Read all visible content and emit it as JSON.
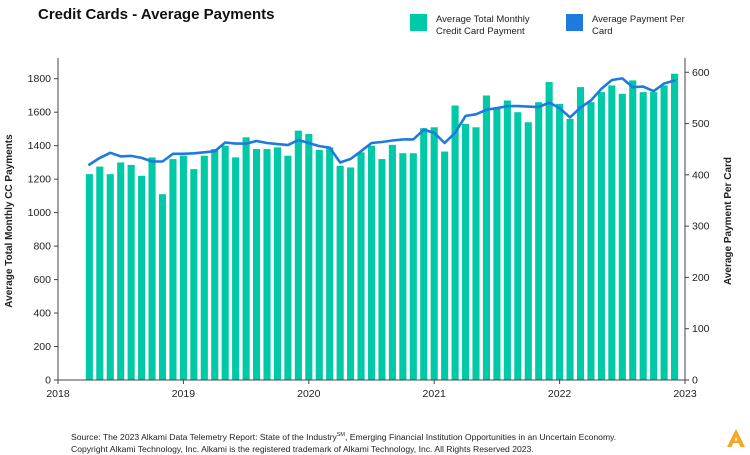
{
  "title": "Credit Cards - Average Payments",
  "colors": {
    "bar": "#00c9a7",
    "line": "#1f7ae0",
    "axis": "#444444"
  },
  "legend": [
    {
      "label": "Average Total Monthly Credit Card Payment",
      "color": "#00c9a7",
      "marker": "square"
    },
    {
      "label": "Average Payment Per Card",
      "color": "#1f7ae0",
      "marker": "square"
    }
  ],
  "footnote": {
    "line1_before": "Source: The 2023 Alkami Data Telemetry Report: State of the Industry",
    "line1_sup": "SM",
    "line1_after": ", Emerging Financial Institution Opportunities in an Uncertain Economy.",
    "line2": "Copyright Alkami Technology, Inc. Alkami is the registered trademark of Alkami Technology, Inc. All Rights Reserved 2023."
  },
  "logo_icon": "alkami-logo-icon",
  "chart_data": {
    "type": "bar+line",
    "xlabel": "",
    "ylabel": "Average Total Monthly CC Payments",
    "y2label": "Average Payment Per Card",
    "ylim": [
      0,
      1900
    ],
    "y2lim": [
      0,
      620
    ],
    "y_ticks": [
      0,
      200,
      400,
      600,
      800,
      1000,
      1200,
      1400,
      1600,
      1800
    ],
    "y2_ticks": [
      0,
      100,
      200,
      300,
      400,
      500,
      600
    ],
    "x_ticks": [
      "2018",
      "2019",
      "2020",
      "2021",
      "2022",
      "2023"
    ],
    "x_range_years": [
      2018,
      2023
    ],
    "grid": false,
    "legend_position": "top-right",
    "x": [
      "2018-04",
      "2018-05",
      "2018-06",
      "2018-07",
      "2018-08",
      "2018-09",
      "2018-10",
      "2018-11",
      "2018-12",
      "2019-01",
      "2019-02",
      "2019-03",
      "2019-04",
      "2019-05",
      "2019-06",
      "2019-07",
      "2019-08",
      "2019-09",
      "2019-10",
      "2019-11",
      "2019-12",
      "2020-01",
      "2020-02",
      "2020-03",
      "2020-04",
      "2020-05",
      "2020-06",
      "2020-07",
      "2020-08",
      "2020-09",
      "2020-10",
      "2020-11",
      "2020-12",
      "2021-01",
      "2021-02",
      "2021-03",
      "2021-04",
      "2021-05",
      "2021-06",
      "2021-07",
      "2021-08",
      "2021-09",
      "2021-10",
      "2021-11",
      "2021-12",
      "2022-01",
      "2022-02",
      "2022-03",
      "2022-04",
      "2022-05",
      "2022-06",
      "2022-07",
      "2022-08",
      "2022-09",
      "2022-10",
      "2022-11",
      "2022-12"
    ],
    "series": [
      {
        "name": "Average Total Monthly Credit Card Payment",
        "type": "bar",
        "axis": "left",
        "values": [
          1230,
          1275,
          1230,
          1300,
          1285,
          1220,
          1330,
          1110,
          1320,
          1340,
          1260,
          1340,
          1380,
          1400,
          1330,
          1450,
          1380,
          1380,
          1390,
          1340,
          1490,
          1470,
          1375,
          1390,
          1280,
          1270,
          1360,
          1400,
          1320,
          1405,
          1355,
          1355,
          1505,
          1510,
          1365,
          1640,
          1530,
          1510,
          1700,
          1620,
          1670,
          1600,
          1540,
          1660,
          1780,
          1650,
          1560,
          1750,
          1660,
          1720,
          1760,
          1710,
          1790,
          1720,
          1720,
          1760,
          1830
        ]
      },
      {
        "name": "Average Payment Per Card",
        "type": "line",
        "axis": "right",
        "values": [
          420,
          433,
          443,
          436,
          437,
          433,
          426,
          426,
          441,
          441,
          442,
          444,
          446,
          463,
          461,
          461,
          466,
          462,
          460,
          458,
          468,
          462,
          456,
          453,
          424,
          431,
          446,
          462,
          464,
          467,
          469,
          469,
          488,
          482,
          462,
          482,
          515,
          518,
          527,
          530,
          534,
          534,
          533,
          532,
          541,
          530,
          512,
          531,
          545,
          568,
          585,
          588,
          571,
          572,
          563,
          578,
          584
        ]
      }
    ]
  }
}
